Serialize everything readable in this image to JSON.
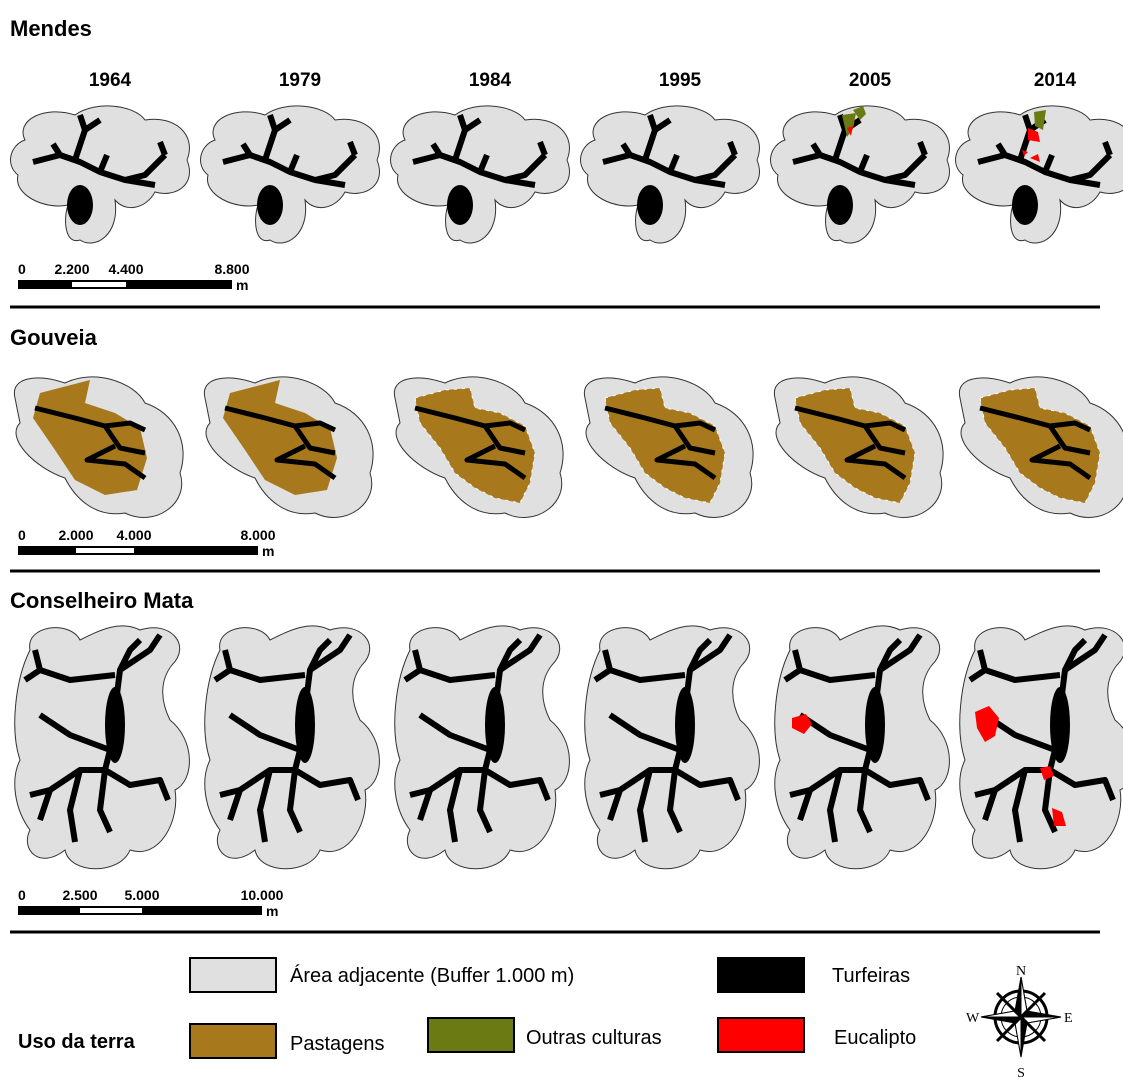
{
  "years": [
    "1964",
    "1979",
    "1984",
    "1995",
    "2005",
    "2014"
  ],
  "regions": [
    {
      "name": "Mendes",
      "scale": [
        "0",
        "2.200",
        "4.400",
        "8.800",
        "m"
      ]
    },
    {
      "name": "Gouveia",
      "scale": [
        "0",
        "2.000",
        "4.000",
        "8.000",
        "m"
      ]
    },
    {
      "name": "Conselheiro Mata",
      "scale": [
        "0",
        "2.500",
        "5.000",
        "10.000",
        "m"
      ]
    }
  ],
  "legend": {
    "title": "Uso da terra",
    "buffer": "Área adjacente (Buffer 1.000 m)",
    "peat": "Turfeiras",
    "pasture": "Pastagens",
    "other": "Outras culturas",
    "eucalyptus": "Eucalipto"
  },
  "compass": {
    "n": "N",
    "s": "S",
    "e": "E",
    "w": "W"
  }
}
